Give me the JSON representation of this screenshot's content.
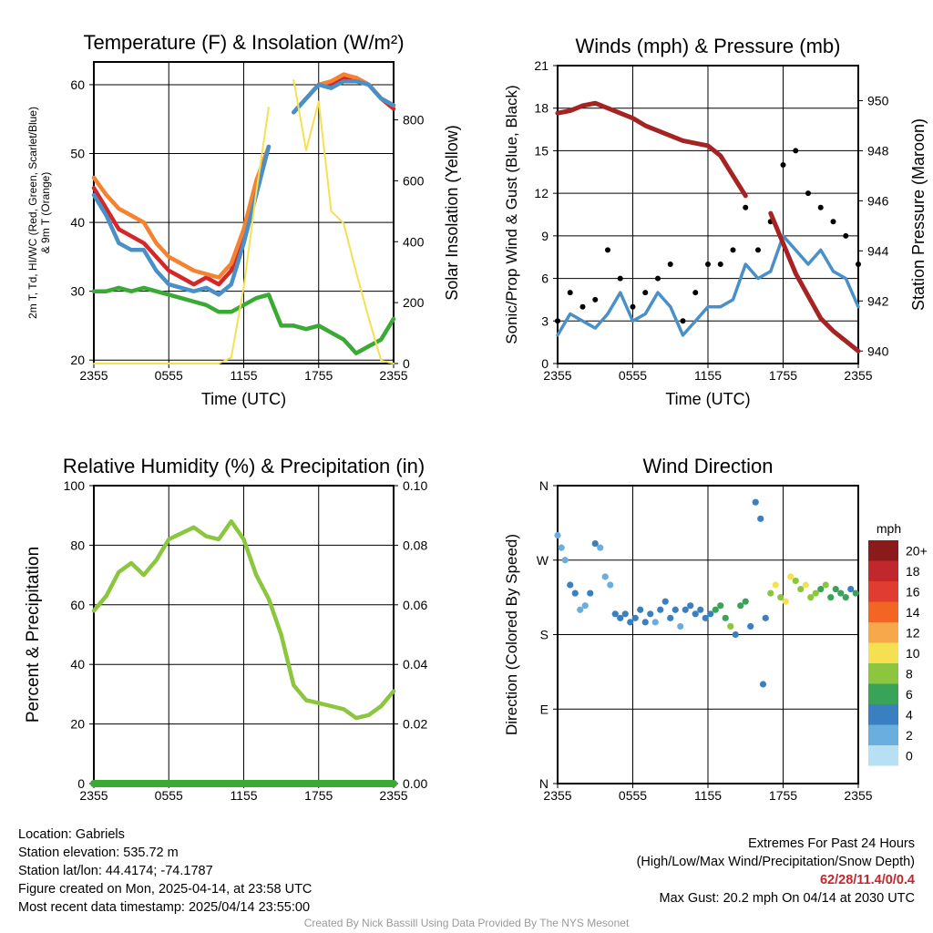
{
  "chart_data": [
    {
      "type": "line",
      "title": "Temperature (F) & Insolation (W/m²)",
      "xlabel": "Time (UTC)",
      "ylabel_line1": "2m T, Td, HI/WC (Red, Green, Scarlet/Blue)",
      "ylabel_line2": "& 9m T (Orange)",
      "y2label": "Solar Insolation (Yellow)",
      "x_ticks": [
        "2355",
        "0555",
        "1155",
        "1755",
        "2355"
      ],
      "y_ticks": [
        20,
        30,
        40,
        50,
        60
      ],
      "y2_ticks": [
        0,
        200,
        400,
        600,
        800
      ],
      "ylim": [
        19.5,
        63.3
      ],
      "y2lim": [
        0,
        990
      ],
      "x": [
        0,
        1,
        2,
        3,
        4,
        5,
        6,
        7,
        8,
        9,
        10,
        11,
        12,
        13,
        14,
        15,
        16,
        17,
        18,
        19,
        20,
        21,
        22,
        23,
        24
      ],
      "series": [
        {
          "color": "#d62728",
          "values": [
            45,
            42,
            39,
            38,
            37,
            35,
            33,
            32,
            31,
            32,
            31,
            33,
            38,
            45,
            51,
            null,
            56,
            58,
            60,
            60,
            61,
            61,
            60,
            58,
            56.5
          ]
        },
        {
          "color": "#f58231",
          "values": [
            46.5,
            44,
            42,
            41,
            40,
            37,
            35,
            34,
            33,
            32.5,
            32,
            34,
            39,
            46,
            51,
            null,
            56,
            58,
            60,
            60.5,
            61.5,
            61,
            60,
            58,
            57
          ]
        },
        {
          "color": "#4a90c8",
          "values": [
            44,
            41,
            37,
            36,
            36,
            33,
            31,
            30.5,
            30,
            30.5,
            29.5,
            31,
            37,
            44,
            51,
            null,
            56,
            58,
            60,
            59.5,
            60.5,
            60.5,
            60,
            58,
            57
          ]
        },
        {
          "color": "#3aaa35",
          "values": [
            30,
            30,
            30.5,
            30,
            30.5,
            30,
            29.5,
            29,
            28.5,
            28,
            27,
            27,
            28,
            29,
            29.5,
            25,
            25,
            24.5,
            25,
            24,
            23,
            21,
            22,
            23,
            26
          ]
        },
        {
          "color": "#f5e051",
          "axis": "y2",
          "values": [
            0,
            0,
            0,
            0,
            0,
            0,
            0,
            0,
            0,
            0,
            0,
            20,
            250,
            560,
            840,
            null,
            930,
            700,
            860,
            500,
            460,
            300,
            150,
            10,
            0
          ]
        }
      ]
    },
    {
      "type": "line",
      "title": "Winds (mph) & Pressure (mb)",
      "xlabel": "Time (UTC)",
      "ylabel": "Sonic/Prop Wind & Gust (Blue, Black)",
      "y2label": "Station Pressure (Maroon)",
      "x_ticks": [
        "2355",
        "0555",
        "1155",
        "1755",
        "2355"
      ],
      "y_ticks": [
        0,
        3,
        6,
        9,
        12,
        15,
        18,
        21
      ],
      "y2_ticks": [
        940,
        942,
        944,
        946,
        948,
        950
      ],
      "ylim": [
        0,
        21
      ],
      "y2lim": [
        939.5,
        951.4
      ],
      "x": [
        0,
        1,
        2,
        3,
        4,
        5,
        6,
        7,
        8,
        9,
        10,
        11,
        12,
        13,
        14,
        15,
        16,
        17,
        18,
        19,
        20,
        21,
        22,
        23,
        24
      ],
      "series": [
        {
          "color": "#4a90c8",
          "values": [
            2,
            3.5,
            3,
            2.5,
            3.5,
            5,
            3,
            3.5,
            5,
            4,
            2,
            3,
            4,
            4,
            4.5,
            7,
            6,
            6.5,
            9,
            8,
            7,
            8,
            6.5,
            6,
            4
          ]
        },
        {
          "color": "#000000",
          "style": "dots",
          "values": [
            3,
            5,
            4,
            4.5,
            8,
            6,
            4,
            5,
            6,
            7,
            3,
            5,
            7,
            7,
            8,
            11,
            8,
            10,
            14,
            15,
            12,
            11,
            10,
            9,
            7
          ]
        },
        {
          "color": "#a52323",
          "axis": "y2",
          "values": [
            949.5,
            949.6,
            949.8,
            949.9,
            949.7,
            949.5,
            949.3,
            949.0,
            948.8,
            948.6,
            948.4,
            948.3,
            948.2,
            947.8,
            947.0,
            946.2,
            null,
            945.5,
            944.3,
            943.1,
            942.2,
            941.3,
            940.8,
            940.4,
            940.0
          ]
        }
      ]
    },
    {
      "type": "line",
      "title": "Relative Humidity (%) & Precipitation (in)",
      "ylabel": "Percent & Precipitation",
      "x_ticks": [
        "2355",
        "0555",
        "1155",
        "1755",
        "2355"
      ],
      "y_ticks": [
        0,
        20,
        40,
        60,
        80,
        100
      ],
      "y2_ticks": [
        "0.00",
        "0.02",
        "0.04",
        "0.06",
        "0.08",
        "0.10"
      ],
      "ylim": [
        0,
        100
      ],
      "y2lim": [
        0,
        0.1
      ],
      "x": [
        0,
        1,
        2,
        3,
        4,
        5,
        6,
        7,
        8,
        9,
        10,
        11,
        12,
        13,
        14,
        15,
        16,
        17,
        18,
        19,
        20,
        21,
        22,
        23,
        24
      ],
      "series": [
        {
          "color": "#8cc63f",
          "values": [
            58,
            63,
            71,
            74,
            70,
            75,
            82,
            84,
            86,
            83,
            82,
            88,
            82,
            70,
            62,
            50,
            33,
            28,
            27,
            26,
            25,
            22,
            23,
            26,
            31
          ]
        },
        {
          "color": "#3aaa35",
          "axis": "y2",
          "values": [
            0,
            0,
            0,
            0,
            0,
            0,
            0,
            0,
            0,
            0,
            0,
            0,
            0,
            0,
            0,
            0,
            0,
            0,
            0,
            0,
            0,
            0,
            0,
            0,
            0
          ]
        }
      ]
    },
    {
      "type": "scatter",
      "title": "Wind Direction",
      "ylabel": "Direction (Colored By Speed)",
      "x_ticks": [
        "2355",
        "0555",
        "1155",
        "1755",
        "2355"
      ],
      "y_ticks": [
        "N",
        "E",
        "S",
        "W",
        "N"
      ],
      "ylim": [
        0,
        360
      ],
      "legend_title": "mph",
      "legend_labels": [
        "20+",
        "18",
        "16",
        "14",
        "12",
        "10",
        "8",
        "6",
        "4",
        "2",
        "0"
      ],
      "legend_colors": [
        "#8b1a1a",
        "#c0282d",
        "#e03c31",
        "#f26522",
        "#f7a84a",
        "#f5e051",
        "#8cc63f",
        "#3aa35a",
        "#3a7fbf",
        "#6aaee0",
        "#b8e0f5"
      ],
      "x": [
        0,
        0.3,
        0.6,
        1,
        1.4,
        1.8,
        2.2,
        2.6,
        3,
        3.4,
        3.8,
        4.2,
        4.6,
        5,
        5.4,
        5.8,
        6.2,
        6.6,
        7,
        7.4,
        7.8,
        8.2,
        8.6,
        9,
        9.4,
        9.8,
        10.2,
        10.6,
        11,
        11.4,
        11.8,
        12.2,
        12.6,
        13,
        13.4,
        13.8,
        14.2,
        14.6,
        15,
        15.4,
        15.8,
        16.2,
        16.4,
        16.6,
        17,
        17.4,
        17.8,
        18.2,
        18.6,
        19,
        19.4,
        19.8,
        20.2,
        20.6,
        21,
        21.4,
        21.8,
        22.2,
        22.6,
        23,
        23.4,
        23.8
      ],
      "y": [
        300,
        285,
        270,
        240,
        230,
        210,
        215,
        230,
        290,
        285,
        250,
        240,
        205,
        200,
        205,
        195,
        200,
        210,
        195,
        205,
        195,
        210,
        220,
        200,
        210,
        190,
        210,
        215,
        205,
        210,
        200,
        205,
        210,
        215,
        200,
        190,
        180,
        215,
        220,
        190,
        340,
        320,
        120,
        200,
        230,
        240,
        225,
        220,
        250,
        245,
        235,
        240,
        225,
        230,
        235,
        240,
        225,
        235,
        230,
        225,
        235,
        230
      ],
      "speed": [
        2,
        2,
        2,
        3,
        3,
        2,
        2,
        3,
        4,
        2,
        2,
        2,
        3,
        4,
        3,
        3,
        3,
        4,
        3,
        3,
        2,
        3,
        4,
        4,
        3,
        2,
        3,
        4,
        3,
        4,
        3,
        4,
        5,
        6,
        5,
        7,
        4,
        6,
        5,
        4,
        4,
        4,
        3,
        4,
        7,
        9,
        8,
        10,
        9,
        8,
        7,
        9,
        8,
        7,
        6,
        7,
        6,
        5,
        6,
        5,
        4,
        5
      ]
    }
  ],
  "footer": {
    "location": "Location: Gabriels",
    "elevation": "Station elevation: 535.72 m",
    "latlon": "Station lat/lon: 44.4174; -74.1787",
    "created": "Figure created on Mon, 2025-04-14, at 23:58 UTC",
    "recent": "Most recent data timestamp: 2025/04/14 23:55:00",
    "extremes_title": "Extremes For Past 24 Hours",
    "extremes_legend": "(High/Low/Max Wind/Precipitation/Snow Depth)",
    "extremes_values": "62/28/11.4/0/0.4",
    "max_gust": "Max Gust: 20.2 mph On 04/14 at 2030 UTC",
    "credit": "Created By Nick Bassill Using Data Provided By The NYS Mesonet"
  }
}
